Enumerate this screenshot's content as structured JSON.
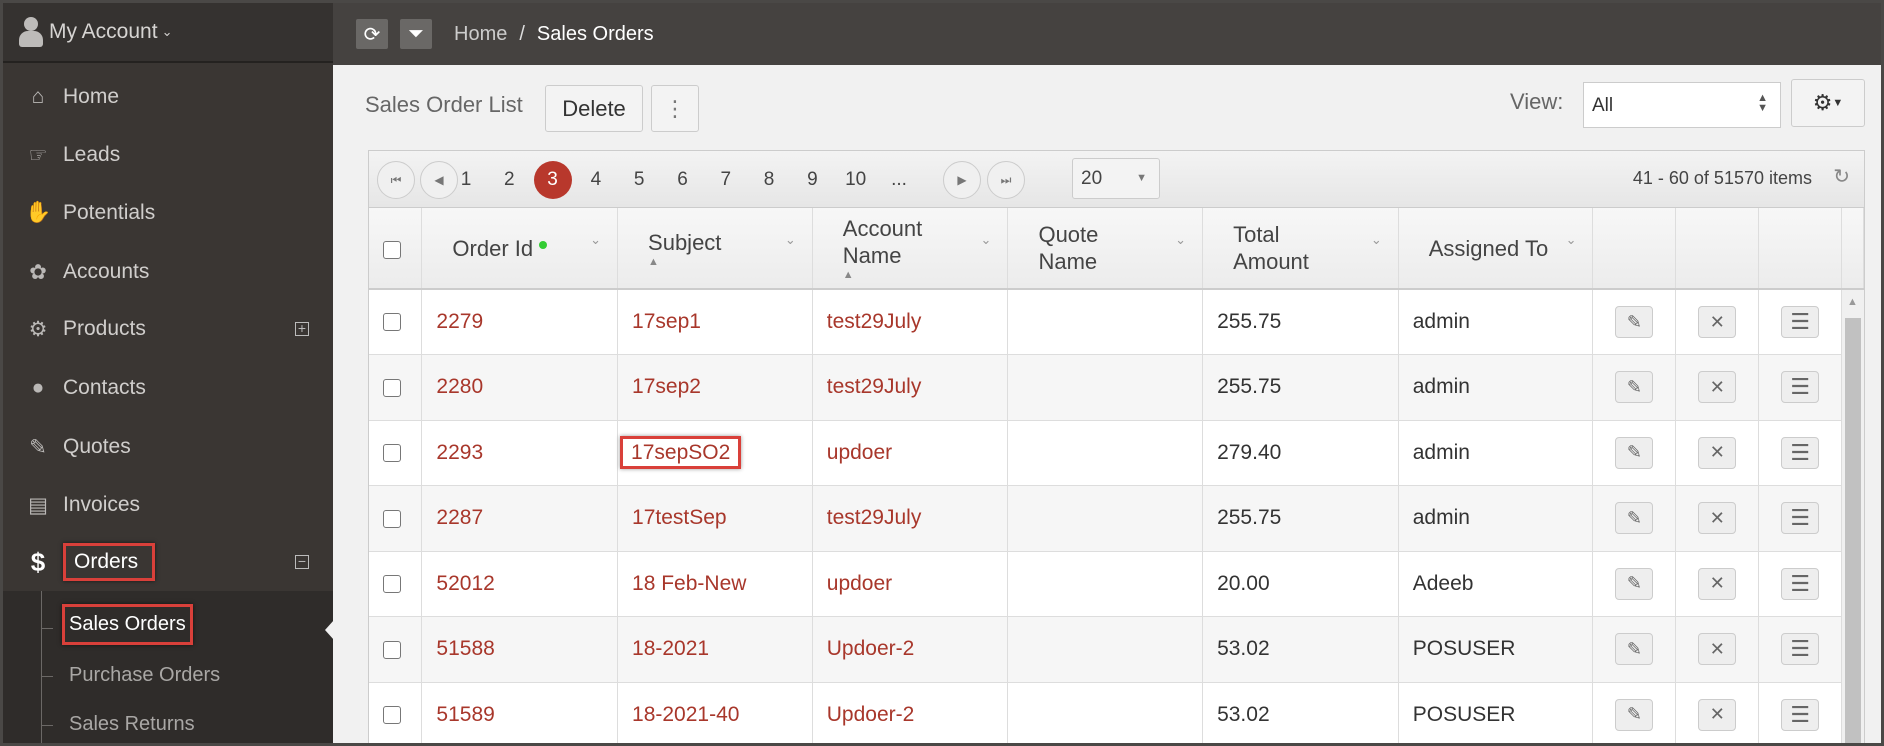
{
  "sidebar": {
    "account": "My Account",
    "items": [
      {
        "label": "Home",
        "icon": "home-icon"
      },
      {
        "label": "Leads",
        "icon": "thumb-right-icon"
      },
      {
        "label": "Potentials",
        "icon": "thumbs-up-icon"
      },
      {
        "label": "Accounts",
        "icon": "paw-icon"
      },
      {
        "label": "Products",
        "icon": "gears-icon"
      },
      {
        "label": "Contacts",
        "icon": "user-icon"
      },
      {
        "label": "Quotes",
        "icon": "edit-icon"
      },
      {
        "label": "Invoices",
        "icon": "file-icon"
      },
      {
        "label": "Orders",
        "icon": "dollar-icon"
      }
    ],
    "subitems": [
      "Sales Orders",
      "Purchase Orders",
      "Sales Returns"
    ]
  },
  "topbar": {
    "breadcrumb_home": "Home",
    "breadcrumb_sep": "/",
    "breadcrumb_current": "Sales Orders"
  },
  "toolbar": {
    "title": "Sales Order List",
    "delete": "Delete",
    "view_label": "View:",
    "view_value": "All"
  },
  "pager": {
    "pages": [
      "1",
      "2",
      "3",
      "4",
      "5",
      "6",
      "7",
      "8",
      "9",
      "10",
      "..."
    ],
    "current": "3",
    "page_size": "20",
    "info": "41 - 60 of 51570 items"
  },
  "columns": [
    "Order Id",
    "Subject",
    "Account Name",
    "Quote Name",
    "Total Amount",
    "Assigned To"
  ],
  "rows": [
    [
      "2279",
      "17sep1",
      "test29July",
      "",
      "255.75",
      "admin"
    ],
    [
      "2280",
      "17sep2",
      "test29July",
      "",
      "255.75",
      "admin"
    ],
    [
      "2293",
      "17sepSO2",
      "updoer",
      "",
      "279.40",
      "admin"
    ],
    [
      "2287",
      "17testSep",
      "test29July",
      "",
      "255.75",
      "admin"
    ],
    [
      "52012",
      "18 Feb-New",
      "updoer",
      "",
      "20.00",
      "Adeeb"
    ],
    [
      "51588",
      "18-2021",
      "Updoer-2",
      "",
      "53.02",
      "POSUSER"
    ],
    [
      "51589",
      "18-2021-40",
      "Updoer-2",
      "",
      "53.02",
      "POSUSER"
    ]
  ],
  "colors": {
    "link": "#a8372b",
    "current_page": "#b8382c",
    "highlight_box": "#d9403a",
    "sidebar": "#3a3633"
  }
}
